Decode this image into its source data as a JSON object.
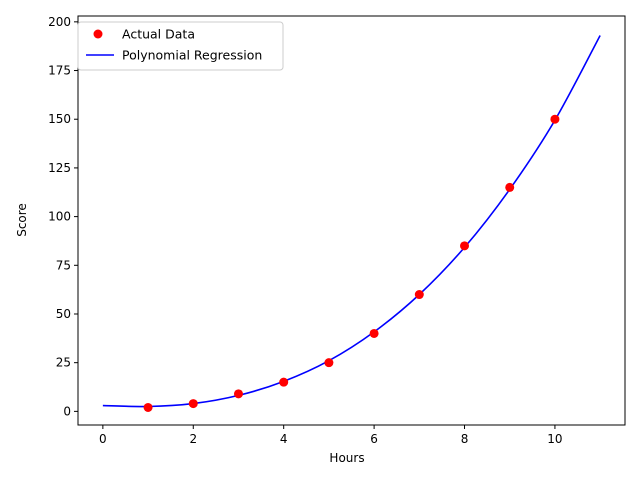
{
  "chart_data": {
    "type": "scatter",
    "title": "",
    "xlabel": "Hours",
    "ylabel": "Score",
    "xlim": [
      -0.55,
      11.55
    ],
    "ylim": [
      -7,
      203
    ],
    "xticks": [
      0,
      2,
      4,
      6,
      8,
      10
    ],
    "yticks": [
      0,
      25,
      50,
      75,
      100,
      125,
      150,
      175,
      200
    ],
    "grid": false,
    "legend_position": "top-left",
    "series": [
      {
        "name": "Actual Data",
        "kind": "scatter",
        "color": "#ff0000",
        "x": [
          1,
          2,
          3,
          4,
          5,
          6,
          7,
          8,
          9,
          10
        ],
        "y": [
          2,
          4,
          9,
          15,
          25,
          40,
          60,
          85,
          115,
          150
        ]
      },
      {
        "name": "Polynomial Regression",
        "kind": "line",
        "color": "#0000ff",
        "x": [
          0,
          1,
          2,
          3,
          4,
          5,
          6,
          7,
          8,
          9,
          10,
          11
        ],
        "y": [
          3,
          2.5,
          4,
          8.2,
          15.4,
          26,
          40.8,
          60,
          84.2,
          114,
          149.5,
          193
        ]
      }
    ]
  }
}
